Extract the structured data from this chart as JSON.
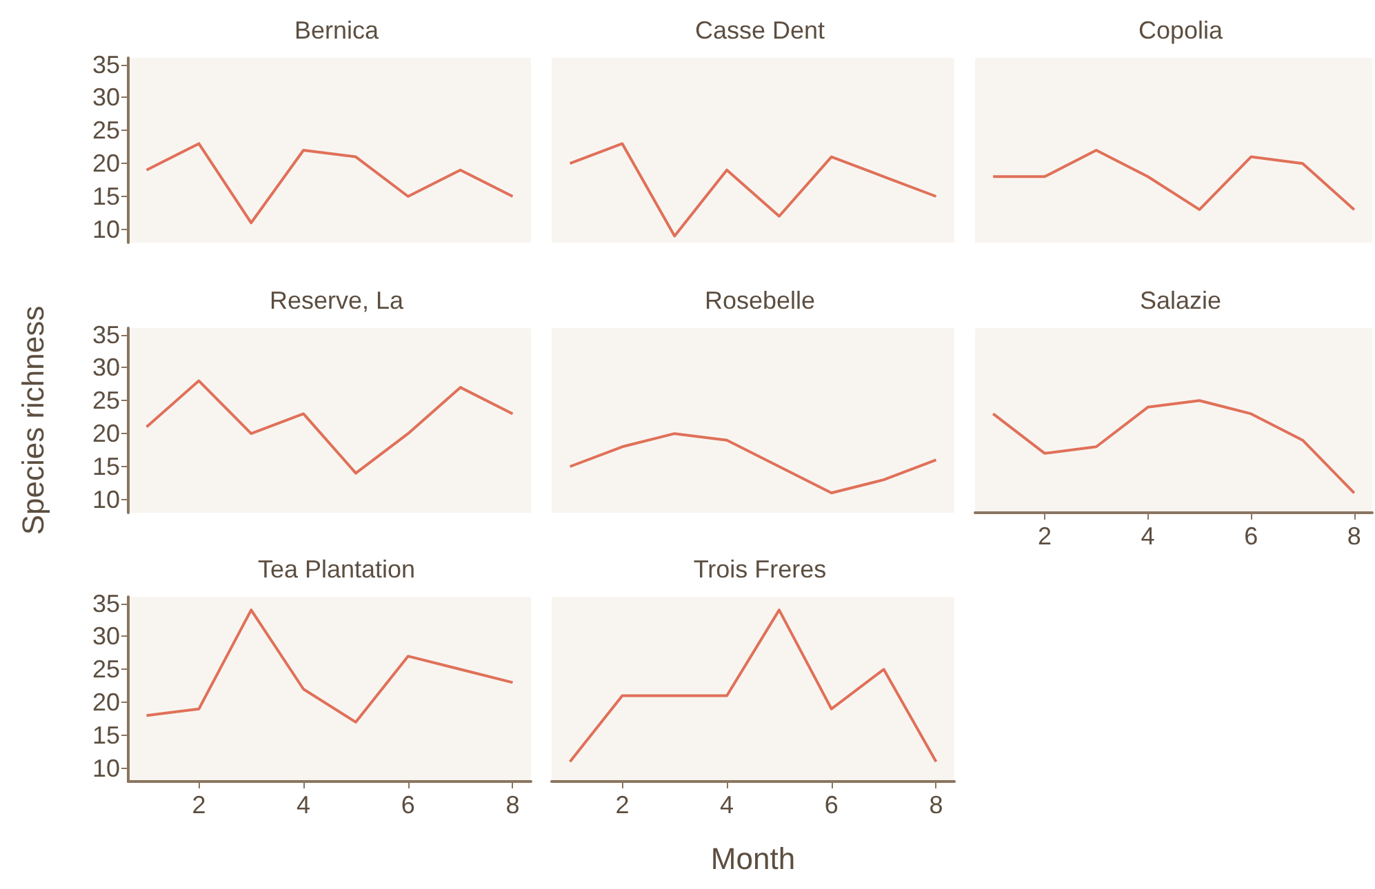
{
  "chart_data": [
    {
      "type": "line",
      "title": "Bernica",
      "x": [
        1,
        2,
        3,
        4,
        5,
        6,
        7,
        8
      ],
      "values": [
        19,
        23,
        11,
        22,
        21,
        15,
        19,
        15
      ],
      "color": "#e07058",
      "xlim": [
        0.65,
        8.35
      ],
      "ylim": [
        8,
        36
      ],
      "xticks": [
        2,
        4,
        6,
        8
      ],
      "yticks": [
        10,
        15,
        20,
        25,
        30,
        35
      ],
      "tick_labels": "y",
      "marker": "none"
    },
    {
      "type": "line",
      "title": "Casse Dent",
      "x": [
        1,
        2,
        3,
        4,
        5,
        6,
        7,
        8
      ],
      "values": [
        20,
        23,
        9,
        19,
        12,
        21,
        18,
        15
      ],
      "color": "#e07058",
      "xlim": [
        0.65,
        8.35
      ],
      "ylim": [
        8,
        36
      ],
      "xticks": [
        2,
        4,
        6,
        8
      ],
      "yticks": [
        10,
        15,
        20,
        25,
        30,
        35
      ],
      "tick_labels": false,
      "marker": "none"
    },
    {
      "type": "line",
      "title": "Copolia",
      "x": [
        1,
        2,
        3,
        4,
        5,
        6,
        7,
        8
      ],
      "values": [
        18,
        18,
        22,
        18,
        13,
        21,
        20,
        13
      ],
      "color": "#e07058",
      "xlim": [
        0.65,
        8.35
      ],
      "ylim": [
        8,
        36
      ],
      "xticks": [
        2,
        4,
        6,
        8
      ],
      "yticks": [
        10,
        15,
        20,
        25,
        30,
        35
      ],
      "tick_labels": false,
      "marker": "none"
    },
    {
      "type": "line",
      "title": "Reserve, La",
      "ylabel": "Species richness",
      "x": [
        1,
        2,
        3,
        4,
        5,
        6,
        7,
        8
      ],
      "values": [
        21,
        28,
        20,
        23,
        14,
        20,
        27,
        23
      ],
      "color": "#e07058",
      "xlim": [
        0.65,
        8.35
      ],
      "ylim": [
        8,
        36
      ],
      "xticks": [
        2,
        4,
        6,
        8
      ],
      "yticks": [
        10,
        15,
        20,
        25,
        30,
        35
      ],
      "tick_labels": "y",
      "marker": "none"
    },
    {
      "type": "line",
      "title": "Rosebelle",
      "x": [
        1,
        2,
        3,
        4,
        5,
        6,
        7,
        8
      ],
      "values": [
        15,
        18,
        20,
        19,
        15,
        11,
        13,
        16
      ],
      "color": "#e07058",
      "xlim": [
        0.65,
        8.35
      ],
      "ylim": [
        8,
        36
      ],
      "xticks": [
        2,
        4,
        6,
        8
      ],
      "yticks": [
        10,
        15,
        20,
        25,
        30,
        35
      ],
      "tick_labels": false,
      "marker": "none"
    },
    {
      "type": "line",
      "title": "Salazie",
      "x": [
        1,
        2,
        3,
        4,
        5,
        6,
        7,
        8
      ],
      "values": [
        23,
        17,
        18,
        24,
        25,
        23,
        19,
        11
      ],
      "color": "#e07058",
      "xlim": [
        0.65,
        8.35
      ],
      "ylim": [
        8,
        36
      ],
      "xticks": [
        2,
        4,
        6,
        8
      ],
      "yticks": [
        10,
        15,
        20,
        25,
        30,
        35
      ],
      "tick_labels": "x",
      "marker": "none"
    },
    {
      "type": "line",
      "title": "Tea Plantation",
      "x": [
        1,
        2,
        3,
        4,
        5,
        6,
        7,
        8
      ],
      "values": [
        18,
        19,
        34,
        22,
        17,
        27,
        25,
        23
      ],
      "color": "#e07058",
      "xlim": [
        0.65,
        8.35
      ],
      "ylim": [
        8,
        36
      ],
      "xticks": [
        2,
        4,
        6,
        8
      ],
      "yticks": [
        10,
        15,
        20,
        25,
        30,
        35
      ],
      "marker": "none"
    },
    {
      "type": "line",
      "title": "Trois Freres",
      "xlabel": "Month",
      "x": [
        1,
        2,
        3,
        4,
        5,
        6,
        7,
        8
      ],
      "values": [
        11,
        21,
        21,
        21,
        34,
        19,
        25,
        11
      ],
      "color": "#e07058",
      "xlim": [
        0.65,
        8.35
      ],
      "ylim": [
        8,
        36
      ],
      "xticks": [
        2,
        4,
        6,
        8
      ],
      "yticks": [
        10,
        15,
        20,
        25,
        30,
        35
      ],
      "tick_labels": "x",
      "marker": "none"
    }
  ]
}
